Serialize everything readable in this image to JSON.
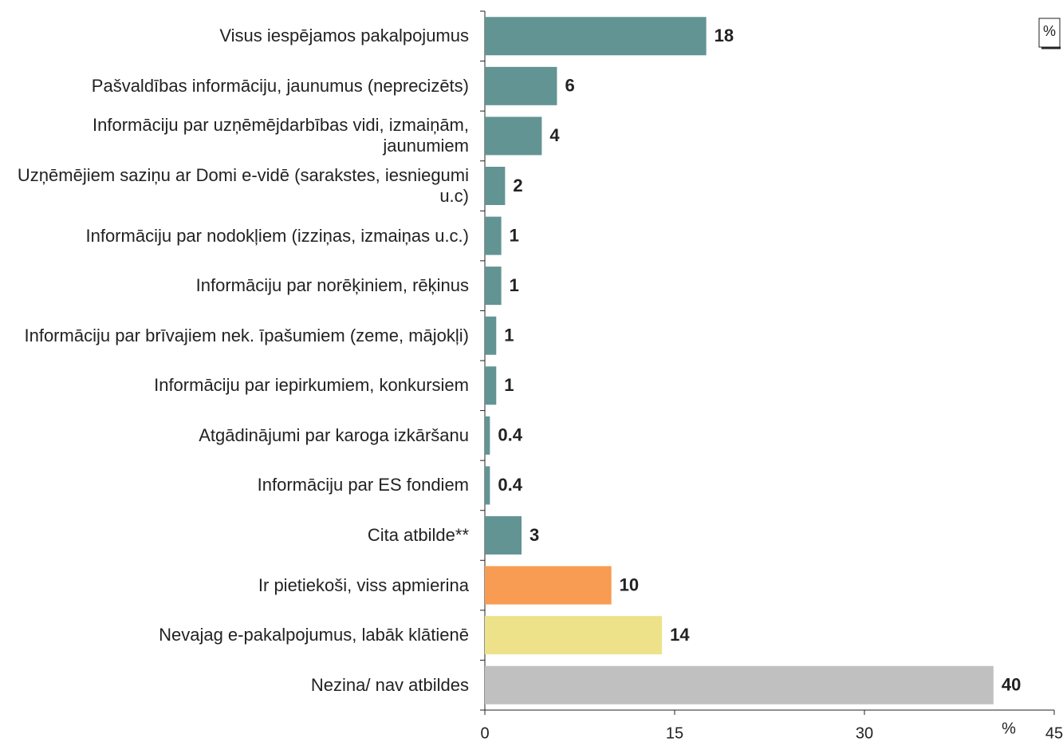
{
  "chart_data": {
    "type": "bar",
    "orientation": "horizontal",
    "categories": [
      "Visus iespējamos pakalpojumus",
      "Pašvaldības informāciju, jaunumus (neprecizēts)",
      "Informāciju par uzņēmējdarbības vidi, izmaiņām, jaunumiem",
      "Uzņēmējiem saziņu ar Domi e-vidē (sarakstes, iesniegumi u.c)",
      "Informāciju par nodokļiem (izziņas, izmaiņas u.c.)",
      "Informāciju par norēķiniem, rēķinus",
      "Informāciju par brīvajiem nek. īpašumiem (zeme, mājokļi)",
      "Informāciju par iepirkumiem, konkursiem",
      "Atgādinājumi par karoga izkāršanu",
      "Informāciju par ES fondiem",
      "Cita atbilde**",
      "Ir pietiekoši, viss apmierina",
      "Nevajag e-pakalpojumus, labāk klātienē",
      "Nezina/ nav atbildes"
    ],
    "values": [
      17.5,
      5.7,
      4.5,
      1.6,
      1.3,
      1.3,
      0.9,
      0.9,
      0.4,
      0.4,
      2.9,
      10.0,
      14.0,
      40.2
    ],
    "value_labels": [
      "18",
      "6",
      "4",
      "2",
      "1",
      "1",
      "1",
      "1",
      "0.4",
      "0.4",
      "3",
      "10",
      "14",
      "40"
    ],
    "colors": [
      "#639494",
      "#639494",
      "#639494",
      "#639494",
      "#639494",
      "#639494",
      "#639494",
      "#639494",
      "#639494",
      "#639494",
      "#639494",
      "#f79c52",
      "#ede28a",
      "#c0c0c0"
    ],
    "xlim": [
      0,
      45
    ],
    "xticks": [
      0,
      15,
      30,
      45
    ],
    "x_unit": "%",
    "badge": "%"
  }
}
